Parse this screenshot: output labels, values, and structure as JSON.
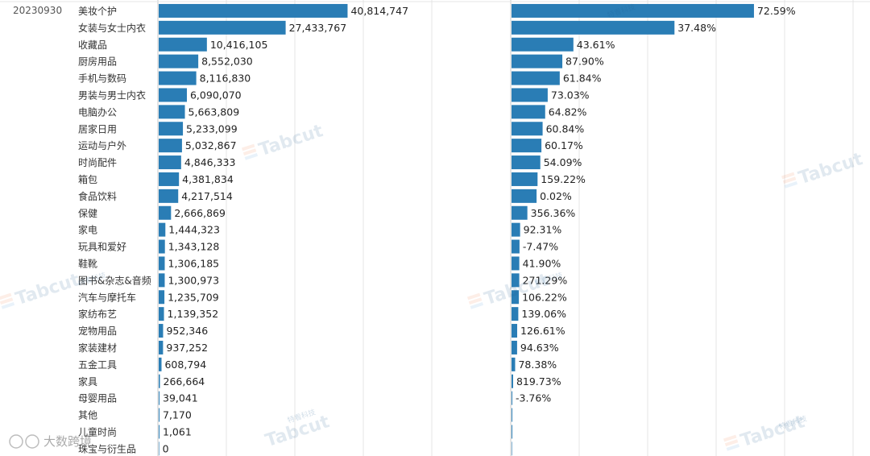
{
  "date_label": "20230930",
  "chart_data": {
    "type": "bar",
    "orientation": "horizontal",
    "categories": [
      "美妆个护",
      "女装与女士内衣",
      "收藏品",
      "厨房用品",
      "手机与数码",
      "男装与男士内衣",
      "电脑办公",
      "居家日用",
      "运动与户外",
      "时尚配件",
      "箱包",
      "食品饮料",
      "保健",
      "家电",
      "玩具和爱好",
      "鞋靴",
      "图书&杂志&音频",
      "汽车与摩托车",
      "家纺布艺",
      "宠物用品",
      "家装建材",
      "五金工具",
      "家具",
      "母婴用品",
      "其他",
      "儿童时尚",
      "珠宝与衍生品"
    ],
    "series": [
      {
        "name": "sales",
        "values": [
          40814747,
          27433767,
          10416105,
          8552030,
          8116830,
          6090070,
          5663809,
          5233099,
          5032867,
          4846333,
          4381834,
          4217514,
          2666869,
          1444323,
          1343128,
          1306185,
          1300973,
          1235709,
          1139352,
          952346,
          937252,
          608794,
          266664,
          39041,
          7170,
          1061,
          0
        ],
        "labels": [
          "40,814,747",
          "27,433,767",
          "10,416,105",
          "8,552,030",
          "8,116,830",
          "6,090,070",
          "5,663,809",
          "5,233,099",
          "5,032,867",
          "4,846,333",
          "4,381,834",
          "4,217,514",
          "2,666,869",
          "1,444,323",
          "1,343,128",
          "1,306,185",
          "1,300,973",
          "1,235,709",
          "1,139,352",
          "952,346",
          "937,252",
          "608,794",
          "266,664",
          "39,041",
          "7,170",
          "1,061",
          "0"
        ]
      },
      {
        "name": "share",
        "values": [
          40814747,
          27433767,
          10416105,
          8552030,
          8116830,
          6090070,
          5663809,
          5233099,
          5032867,
          4846333,
          4381834,
          4217514,
          2666869,
          1444323,
          1343128,
          1306185,
          1300973,
          1235709,
          1139352,
          952346,
          937252,
          608794,
          266664,
          39041,
          7170,
          1061,
          0
        ],
        "labels": [
          "72.59%",
          "37.48%",
          "43.61%",
          "87.90%",
          "61.84%",
          "73.03%",
          "64.82%",
          "60.84%",
          "60.17%",
          "54.09%",
          "159.22%",
          "0.02%",
          "356.36%",
          "92.31%",
          "-7.47%",
          "41.90%",
          "271.29%",
          "106.22%",
          "139.06%",
          "126.61%",
          "94.63%",
          "78.38%",
          "819.73%",
          "-3.76%",
          "",
          "",
          ""
        ]
      }
    ],
    "xlim": [
      0,
      47000000
    ]
  },
  "watermarks": {
    "brand": "Tabcut",
    "sub": "特看科技",
    "bottom_left": "大数跨境"
  },
  "colors": {
    "bar": "#2a7db5",
    "grid": "#e4e4e4"
  }
}
